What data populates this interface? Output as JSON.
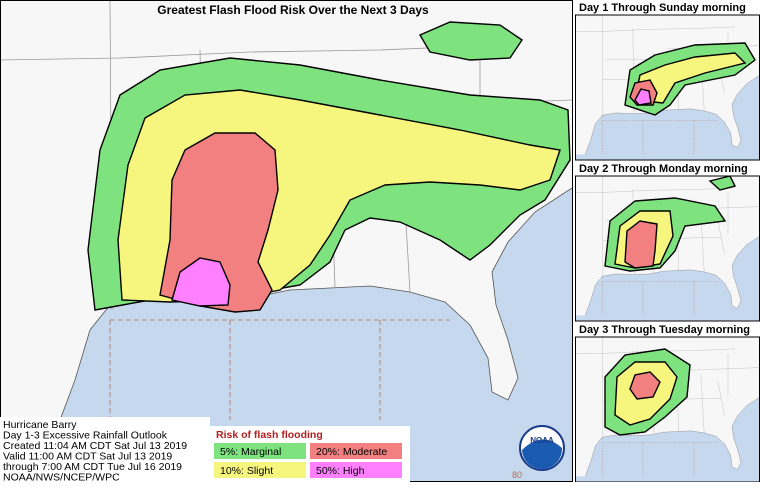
{
  "main_map": {
    "title": "Greatest Flash Flood Risk Over the Next 3 Days"
  },
  "panels": [
    {
      "title": "Day 1 Through Sunday morning"
    },
    {
      "title": "Day 2 Through Monday morning"
    },
    {
      "title": "Day 3 Through Tuesday morning"
    }
  ],
  "info": {
    "lines": [
      "Hurricane Barry",
      "Day 1-3 Excessive Rainfall Outlook",
      "Created 11:04 AM CDT Sat Jul 13 2019",
      "Valid 11:00 AM CDT Sat Jul 13 2019",
      "through 7:00 AM CDT Tue Jul 16 2019",
      "NOAA/NWS/NCEP/WPC"
    ]
  },
  "legend": {
    "title": "Risk of flash flooding",
    "items": [
      {
        "label": "5%: Marginal",
        "color": "#7ee27e"
      },
      {
        "label": "20%: Moderate",
        "color": "#f28080"
      },
      {
        "label": "10%: Slight",
        "color": "#f6f67e"
      },
      {
        "label": "50%: High",
        "color": "#ff80ff"
      }
    ]
  },
  "logo": "NOAA",
  "annotation": "80"
}
